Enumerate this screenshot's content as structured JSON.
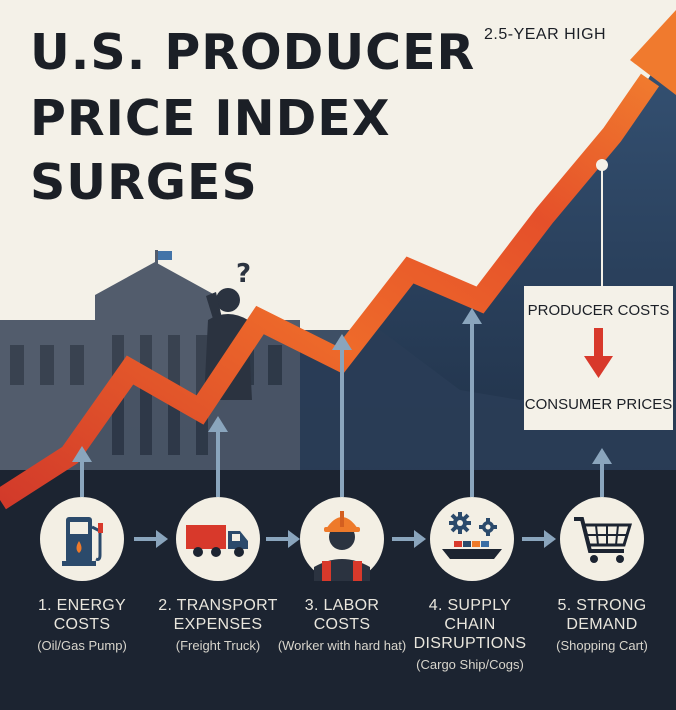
{
  "title": {
    "line1": "U.S. PRODUCER",
    "line2": "PRICE INDEX",
    "line3": "SURGES"
  },
  "peak_badge": "2.5-YEAR HIGH",
  "callout": {
    "top": "PRODUCER COSTS",
    "bottom": "CONSUMER PRICES"
  },
  "steps": [
    {
      "label": "1. ENERGY COSTS",
      "desc": "(Oil/Gas Pump)",
      "icon": "gas-pump-icon"
    },
    {
      "label": "2. TRANSPORT EXPENSES",
      "desc": "(Freight Truck)",
      "icon": "freight-truck-icon"
    },
    {
      "label": "3. LABOR COSTS",
      "desc": "(Worker with hard hat)",
      "icon": "worker-hardhat-icon"
    },
    {
      "label": "4. SUPPLY CHAIN DISRUPTIONS",
      "desc": "(Cargo Ship/Cogs)",
      "icon": "cargo-ship-cogs-icon"
    },
    {
      "label": "5. STRONG DEMAND",
      "desc": "(Shopping Cart)",
      "icon": "shopping-cart-icon"
    }
  ],
  "colors": {
    "background_light": "#f4f1e8",
    "background_dark": "#1c2431",
    "trend_orange": "#ee6a2a",
    "trend_red": "#d8392b",
    "navy_area": "#2b4463",
    "arrow_blue": "#8aa5bd",
    "text_dark": "#1b1f26",
    "text_light": "#e9e6dd"
  }
}
